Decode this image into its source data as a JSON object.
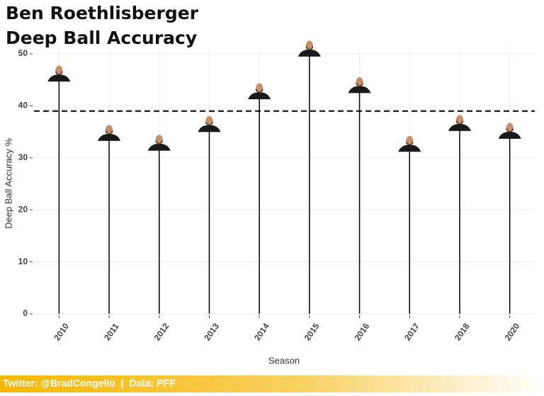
{
  "chart_data": {
    "type": "lollipop",
    "title": [
      "Ben Roethlisberger",
      "Deep Ball Accuracy"
    ],
    "x_label": "Season",
    "y_label": "Deep Ball Accuracy %",
    "categories": [
      "2010",
      "2011",
      "2012",
      "2013",
      "2014",
      "2015",
      "2016",
      "2017",
      "2018",
      "2020"
    ],
    "values": [
      44.8,
      33.4,
      31.5,
      35.1,
      41.4,
      49.6,
      42.6,
      31.3,
      35.3,
      33.8
    ],
    "reference_line": 39.0,
    "color": "#000000",
    "ylim": [
      0,
      50
    ],
    "yticks": [
      0,
      10,
      20,
      30,
      40,
      50
    ],
    "grid": true,
    "caption": "Twitter: @BradCongelio  |  Data: PFF"
  }
}
